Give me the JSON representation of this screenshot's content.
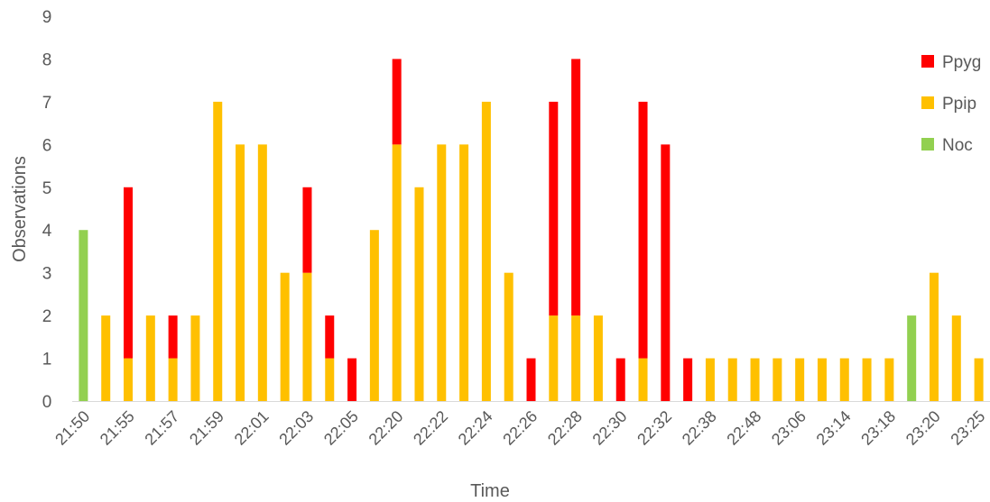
{
  "chart_data": {
    "type": "bar",
    "stacked": true,
    "xlabel": "Time",
    "ylabel": "Observations",
    "ylim": [
      0,
      9
    ],
    "yticks": [
      0,
      1,
      2,
      3,
      4,
      5,
      6,
      7,
      8,
      9
    ],
    "grid": false,
    "legend_position": "right",
    "x_tick_labels": [
      "21:50",
      "21:55",
      "21:57",
      "21:59",
      "22:01",
      "22:03",
      "22:05",
      "22:20",
      "22:22",
      "22:24",
      "22:26",
      "22:28",
      "22:30",
      "22:32",
      "22:38",
      "22:48",
      "23:06",
      "23:14",
      "23:18",
      "23:20",
      "23:25"
    ],
    "bar_count": 41,
    "series": [
      {
        "name": "Noc",
        "color": "#92D050",
        "values": [
          4,
          0,
          0,
          0,
          0,
          0,
          0,
          0,
          0,
          0,
          0,
          0,
          0,
          0,
          0,
          0,
          0,
          0,
          0,
          0,
          0,
          0,
          0,
          0,
          0,
          0,
          0,
          0,
          0,
          0,
          0,
          0,
          0,
          0,
          0,
          0,
          0,
          2,
          0,
          0,
          0
        ]
      },
      {
        "name": "Ppip",
        "color": "#FFC000",
        "values": [
          0,
          2,
          1,
          2,
          1,
          2,
          7,
          6,
          6,
          3,
          3,
          1,
          0,
          4,
          6,
          5,
          6,
          6,
          7,
          3,
          0,
          2,
          2,
          2,
          0,
          1,
          0,
          0,
          1,
          1,
          1,
          1,
          1,
          1,
          1,
          1,
          1,
          0,
          3,
          2,
          1
        ]
      },
      {
        "name": "Ppyg",
        "color": "#FF0000",
        "values": [
          0,
          0,
          4,
          0,
          1,
          0,
          0,
          0,
          0,
          0,
          2,
          1,
          1,
          0,
          2,
          0,
          0,
          0,
          0,
          0,
          1,
          5,
          6,
          0,
          1,
          6,
          6,
          1,
          0,
          0,
          0,
          0,
          0,
          0,
          0,
          0,
          0,
          0,
          0,
          0,
          0
        ]
      }
    ],
    "trailing_bars": [
      {
        "Ppip": 1
      },
      {
        "Ppip": 1
      }
    ]
  }
}
